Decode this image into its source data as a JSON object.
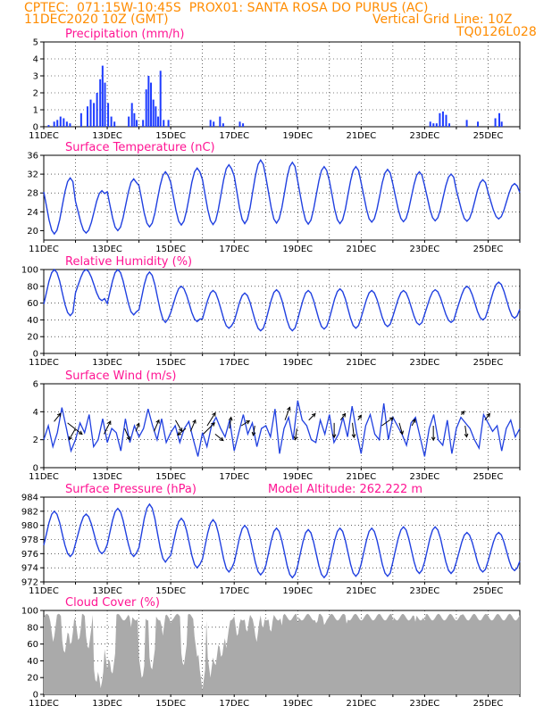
{
  "header": {
    "line1_left": "CPTEC:  071:15W-10:45S  PROX01: SANTA ROSA DO PURUS (AC)",
    "line2_left": "11DEC2020 10Z (GMT)",
    "line2_right": "Vertical Grid Line: 10Z",
    "line3_right": "TQ0126L028"
  },
  "colors": {
    "series": "#2040e0",
    "bars": "#1e3cff",
    "cloud": "#aaaaaa",
    "title": "#ff1493",
    "header": "#ff8c00"
  },
  "chart_data": [
    {
      "type": "bar",
      "title": "Precipitation (mm/h)",
      "xlabel": "",
      "ylabel": "",
      "x_tick_labels": [
        "11DEC",
        "13DEC",
        "15DEC",
        "17DEC",
        "19DEC",
        "21DEC",
        "23DEC",
        "25DEC"
      ],
      "y_tick_labels": [
        "0",
        "1",
        "2",
        "3",
        "4",
        "5"
      ],
      "ylim": [
        0,
        5
      ],
      "grid": true,
      "values": [
        0.1,
        0.2,
        0.3,
        0.3,
        0.4,
        0.5,
        0.3,
        0.2,
        0.0,
        0.0,
        0.5,
        1.0,
        1.8,
        2.0,
        2.8,
        3.6,
        2.5,
        1.2,
        0.5,
        0.2,
        0.0,
        0.0,
        0.0,
        0.0,
        0.0,
        0.0,
        0.0,
        0.0,
        0.0,
        0.0,
        0.0,
        0.0,
        0.0,
        0.0,
        0.0,
        0.0,
        0.0,
        0.0,
        0.0,
        0.0,
        0.0,
        0.0,
        0.0,
        0.0,
        0.8,
        1.5,
        0.7,
        0.0,
        0.0,
        0.0,
        0.0,
        0.0,
        0.0,
        0.0,
        0.0,
        0.0,
        0.0,
        0.0,
        0.0,
        0.0,
        0.0,
        0.0,
        0.0,
        0.0,
        0.0,
        0.0,
        0.0,
        0.0,
        0.0,
        0.0,
        0.0,
        0.0,
        0.0,
        0.0,
        0.0,
        0.0,
        0.0,
        0.0,
        0.0,
        0.0,
        0.0,
        0.0,
        0.0,
        0.0,
        0.0,
        0.0,
        0.0,
        0.0,
        0.0,
        0.0,
        0.0,
        0.0,
        0.0,
        0.0,
        0.0,
        0.0,
        0.0,
        0.0,
        0.0,
        0.0,
        0.0,
        0.0,
        0.0,
        0.0,
        0.0,
        0.0,
        0.0,
        0.0,
        0.0,
        0.0,
        0.0,
        0.0,
        0.0,
        0.0,
        0.0,
        0.0,
        0.0,
        0.0,
        0.0,
        0.0,
        0.0,
        0.0,
        0.0,
        0.0,
        0.0,
        0.0,
        0.0,
        0.0,
        0.0,
        0.0,
        0.0,
        0.0,
        0.0,
        0.0,
        0.0,
        0.0,
        0.0,
        0.0,
        0.0,
        0.0,
        0.0,
        0.0,
        0.0,
        0.0,
        0.0,
        0.0,
        0.0,
        0.0,
        0.0,
        0.0,
        0.0,
        0.0,
        0.0,
        0.0,
        0.0,
        0.0,
        0.0,
        0.0,
        0.0,
        0.0,
        0.0,
        0.0,
        0.0,
        0.0,
        0.0,
        0.0,
        0.0,
        0.0,
        0.0,
        0.0,
        0.0,
        0.0,
        0.0,
        0.0,
        0.0,
        0.0,
        0.0,
        0.0,
        0.0,
        0.0,
        0.0,
        0.0,
        0.0,
        0.0,
        0.0,
        0.0,
        0.0,
        0.0,
        0.0,
        0.0,
        0.0,
        0.0,
        0.0,
        0.0,
        0.0,
        0.0,
        0.0,
        0.0,
        0.0,
        0.0,
        0.0,
        0.0,
        0.0,
        0.0,
        0.0,
        0.0,
        0.0,
        0.0,
        0.0,
        0.0,
        0.0,
        0.0,
        0.0,
        0.0,
        0.0,
        0.0,
        0.0,
        0.0,
        0.0,
        0.0,
        0.0,
        0.0,
        0.0,
        0.0,
        0.0,
        0.0,
        0.0,
        0.0,
        0.0,
        0.0,
        0.0,
        0.0,
        0.0,
        0.0,
        0.0,
        0.0,
        0.0,
        0.0,
        0.0,
        0.0,
        0.0,
        0.0,
        0.0,
        0.0,
        0.0,
        0.0,
        0.0,
        0.0,
        0.0,
        0.0,
        0.0,
        0.0,
        0.0,
        0.0,
        0.0,
        0.0,
        0.0,
        0.0,
        0.0,
        0.0,
        0.0,
        0.0,
        0.0,
        0.0,
        0.0,
        0.0,
        0.0,
        0.0,
        0.0,
        0.0,
        0.0,
        0.0,
        0.0,
        0.0,
        0.0,
        0.0,
        0.0,
        0.0,
        0.0,
        0.0,
        0.0,
        0.0,
        0.0,
        0.0,
        0.0,
        0.0,
        0.0,
        0.0,
        0.0,
        0.0,
        0.0,
        0.0,
        0.0,
        0.0,
        0.0,
        0.0,
        0.0,
        0.0,
        0.0,
        0.0,
        0.0,
        0.0,
        0.0,
        0.0,
        0.0,
        0.0,
        0.0,
        0.0,
        0.0,
        0.0,
        0.0,
        0.0,
        0.0,
        0.0,
        0.0,
        0.0,
        0.0,
        0.0,
        0.0,
        0.0,
        0.0,
        0.0,
        0.0,
        0.0,
        0.0,
        0.0,
        0.0,
        0.0,
        0.0,
        0.0,
        0.0,
        0.0,
        0.0,
        0.0,
        0.0,
        0.0,
        0.0,
        0.0,
        0.0,
        0.0,
        0.0,
        0.0,
        0.0,
        0.0,
        0.0,
        0.0,
        0.0,
        0.0,
        0.0,
        0.0,
        0.0,
        0.0,
        0.0,
        0.0,
        0.0,
        0.0,
        0.0,
        0.0,
        0.0,
        0.0,
        0.0,
        0.0,
        0.0,
        0.0,
        0.0,
        0.0,
        0.0,
        0.0,
        0.0,
        0.0,
        0.0,
        0.0,
        0.0,
        0.0,
        0.0,
        0.0,
        0.0,
        0.0,
        0.0,
        0.0,
        0.0,
        0.0,
        0.0,
        0.0,
        0.0,
        0.0,
        0.0,
        0.0,
        0.0,
        0.0,
        0.0,
        0.0,
        0.0,
        0.0,
        0.0,
        0.0,
        0.0,
        0.0,
        0.0,
        0.0,
        0.0
      ],
      "events": [
        [
          0.5,
          0.1
        ],
        [
          1.2,
          0.3
        ],
        [
          1.6,
          0.4
        ],
        [
          2.0,
          0.6
        ],
        [
          2.4,
          0.5
        ],
        [
          2.8,
          0.3
        ],
        [
          3.2,
          0.2
        ],
        [
          4.6,
          0.8
        ],
        [
          5.4,
          1.2
        ],
        [
          5.8,
          1.6
        ],
        [
          6.2,
          1.4
        ],
        [
          6.6,
          2.0
        ],
        [
          7.0,
          2.8
        ],
        [
          7.3,
          3.6
        ],
        [
          7.6,
          2.6
        ],
        [
          8.0,
          1.4
        ],
        [
          8.4,
          0.6
        ],
        [
          8.8,
          0.3
        ],
        [
          10.6,
          0.6
        ],
        [
          11.0,
          1.4
        ],
        [
          11.3,
          0.8
        ],
        [
          11.6,
          0.4
        ],
        [
          12.4,
          0.4
        ],
        [
          12.8,
          2.2
        ],
        [
          13.1,
          3.0
        ],
        [
          13.4,
          2.6
        ],
        [
          13.7,
          1.6
        ],
        [
          14.0,
          1.2
        ],
        [
          14.3,
          0.6
        ],
        [
          14.6,
          3.3
        ],
        [
          15.0,
          0.4
        ],
        [
          15.6,
          0.4
        ],
        [
          20.9,
          0.4
        ],
        [
          21.3,
          0.3
        ],
        [
          22.1,
          0.6
        ],
        [
          22.5,
          0.2
        ],
        [
          24.6,
          0.3
        ],
        [
          25.0,
          0.2
        ],
        [
          48.6,
          0.3
        ],
        [
          49.0,
          0.2
        ],
        [
          49.4,
          0.2
        ],
        [
          49.8,
          0.8
        ],
        [
          50.2,
          0.9
        ],
        [
          50.6,
          0.7
        ],
        [
          51.0,
          0.2
        ],
        [
          53.2,
          0.4
        ],
        [
          54.6,
          0.3
        ],
        [
          56.8,
          0.5
        ],
        [
          57.3,
          0.8
        ],
        [
          57.6,
          0.3
        ]
      ]
    },
    {
      "type": "line",
      "title": "Surface Temperature (nC)",
      "x_tick_labels": [
        "11DEC",
        "13DEC",
        "15DEC",
        "17DEC",
        "19DEC",
        "21DEC",
        "23DEC",
        "25DEC"
      ],
      "y_tick_labels": [
        "20",
        "24",
        "28",
        "32",
        "36"
      ],
      "ylim": [
        18,
        36
      ],
      "grid": true,
      "daily_min": [
        19.3,
        19.5,
        20.0,
        20.8,
        21.2,
        21.3,
        21.5,
        21.6,
        21.4,
        21.5,
        21.8,
        21.9,
        22.1,
        22.0,
        22.5
      ],
      "daily_max": [
        31.2,
        28.5,
        31.0,
        32.5,
        33.3,
        34.0,
        35.0,
        34.5,
        33.6,
        33.6,
        33.0,
        32.5,
        32.0,
        30.8,
        30.0
      ]
    },
    {
      "type": "line",
      "title": "Relative Humidity (%)",
      "x_tick_labels": [
        "11DEC",
        "13DEC",
        "15DEC",
        "17DEC",
        "19DEC",
        "21DEC",
        "23DEC",
        "25DEC"
      ],
      "y_tick_labels": [
        "0",
        "20",
        "40",
        "60",
        "80",
        "100"
      ],
      "ylim": [
        0,
        100
      ],
      "grid": true,
      "daily_max": [
        100,
        100,
        100,
        97,
        80,
        75,
        72,
        76,
        75,
        77,
        75,
        75,
        76,
        80,
        85
      ],
      "daily_min": [
        45,
        63,
        46,
        37,
        38,
        30,
        27,
        27,
        29,
        30,
        32,
        34,
        37,
        40,
        42
      ]
    },
    {
      "type": "line",
      "title": "Surface Wind (m/s)",
      "x_tick_labels": [
        "11DEC",
        "13DEC",
        "15DEC",
        "17DEC",
        "19DEC",
        "21DEC",
        "23DEC",
        "25DEC"
      ],
      "y_tick_labels": [
        "0",
        "2",
        "4",
        "6"
      ],
      "ylim": [
        0,
        6
      ],
      "grid": true,
      "values": [
        2.0,
        3.0,
        1.5,
        2.5,
        4.3,
        2.8,
        1.2,
        2.0,
        3.2,
        2.5,
        3.8,
        1.5,
        2.0,
        3.5,
        1.8,
        2.8,
        2.5,
        1.2,
        3.5,
        1.8,
        3.0,
        2.2,
        2.8,
        4.2,
        3.0,
        2.0,
        3.5,
        1.8,
        2.5,
        3.0,
        1.8,
        2.8,
        3.3,
        2.0,
        0.8,
        2.5,
        1.5,
        3.0,
        3.6,
        2.8,
        2.2,
        3.4,
        1.2,
        2.5,
        3.8,
        2.4,
        3.2,
        1.5,
        2.8,
        3.0,
        2.2,
        4.2,
        1.0,
        2.8,
        3.6,
        2.0,
        4.8,
        3.4,
        3.0,
        2.0,
        1.8,
        3.4,
        2.4,
        3.8,
        1.8,
        2.4,
        3.6,
        2.2,
        4.4,
        2.5,
        1.0,
        3.0,
        3.8,
        2.4,
        2.0,
        4.6,
        2.0,
        3.6,
        3.0,
        2.4,
        1.6,
        3.2,
        3.6,
        2.2,
        0.8,
        2.8,
        3.8,
        2.0,
        1.6,
        3.4,
        1.0,
        2.8,
        3.6,
        3.2,
        2.8,
        2.0,
        1.4,
        3.8,
        3.2,
        2.6,
        3.0,
        1.2,
        2.8,
        3.4,
        2.2,
        2.8
      ],
      "arrows": [
        [
          1.3,
          3.3,
          0.8,
          1.0
        ],
        [
          3.0,
          3.2,
          1.8,
          -1.4
        ],
        [
          4.0,
          2.8,
          -0.8,
          -1.4
        ],
        [
          7.6,
          2.4,
          0.8,
          1.6
        ],
        [
          10.2,
          2.8,
          0.6,
          -1.4
        ],
        [
          11.6,
          2.6,
          0.4,
          1.0
        ],
        [
          13.9,
          2.6,
          0.6,
          1.4
        ],
        [
          16.6,
          3.4,
          0.8,
          -1.4
        ],
        [
          17.9,
          2.8,
          -1.0,
          -0.8
        ],
        [
          18.5,
          2.6,
          0.6,
          1.4
        ],
        [
          20.1,
          2.4,
          1.4,
          1.4
        ],
        [
          20.6,
          3.0,
          1.0,
          1.6
        ],
        [
          21.6,
          2.4,
          1.0,
          -0.8
        ],
        [
          23.4,
          2.8,
          0.2,
          1.4
        ],
        [
          24.9,
          3.0,
          1.0,
          0.6
        ],
        [
          26.6,
          3.0,
          -0.2,
          -1.2
        ],
        [
          30.4,
          3.4,
          0.6,
          1.6
        ],
        [
          31.9,
          2.8,
          -0.2,
          -1.4
        ],
        [
          33.4,
          3.4,
          0.8,
          0.8
        ],
        [
          36.6,
          3.2,
          0.0,
          -1.8
        ],
        [
          37.4,
          3.4,
          0.6,
          0.8
        ],
        [
          38.9,
          3.2,
          0.2,
          -1.8
        ],
        [
          39.6,
          3.4,
          0.4,
          0.6
        ],
        [
          42.6,
          3.0,
          1.4,
          1.0
        ],
        [
          44.8,
          3.2,
          0.4,
          -1.4
        ],
        [
          46.4,
          3.0,
          0.4,
          0.8
        ],
        [
          49.1,
          3.0,
          0.0,
          -1.8
        ],
        [
          52.6,
          3.8,
          0.4,
          0.4
        ],
        [
          53.1,
          3.0,
          0.2,
          -1.4
        ],
        [
          55.6,
          3.4,
          0.6,
          0.8
        ]
      ]
    },
    {
      "type": "line",
      "title": "Surface Pressure (hPa)",
      "annotation": "Model Altitude: 262.222  m",
      "x_tick_labels": [
        "11DEC",
        "13DEC",
        "15DEC",
        "17DEC",
        "19DEC",
        "21DEC",
        "23DEC",
        "25DEC"
      ],
      "y_tick_labels": [
        "972",
        "974",
        "976",
        "978",
        "980",
        "982",
        "984"
      ],
      "ylim": [
        972,
        984
      ],
      "grid": true,
      "daily_max": [
        982.0,
        981.6,
        982.4,
        983.0,
        981.0,
        980.8,
        980.0,
        979.6,
        979.4,
        979.6,
        979.6,
        979.8,
        979.8,
        979.0,
        979.0
      ],
      "daily_min": [
        975.6,
        976.0,
        975.6,
        974.8,
        974.0,
        973.4,
        973.0,
        972.6,
        972.6,
        972.8,
        972.8,
        973.2,
        973.2,
        973.4,
        973.6
      ]
    },
    {
      "type": "area",
      "title": "Cloud Cover (%)",
      "x_tick_labels": [
        "11DEC",
        "13DEC",
        "15DEC",
        "17DEC",
        "19DEC",
        "21DEC",
        "23DEC",
        "25DEC"
      ],
      "y_tick_labels": [
        "0",
        "20",
        "40",
        "60",
        "80",
        "100"
      ],
      "ylim": [
        0,
        100
      ],
      "grid": true,
      "dips": [
        [
          1.2,
          60
        ],
        [
          2.6,
          45
        ],
        [
          3.4,
          55
        ],
        [
          4.4,
          60
        ],
        [
          5.6,
          50
        ],
        [
          6.6,
          10
        ],
        [
          7.2,
          5
        ],
        [
          8.0,
          30
        ],
        [
          8.6,
          20
        ],
        [
          10.2,
          95
        ],
        [
          11.0,
          80
        ],
        [
          12.4,
          15
        ],
        [
          13.6,
          25
        ],
        [
          15.0,
          70
        ],
        [
          16.0,
          85
        ],
        [
          17.6,
          30
        ],
        [
          19.4,
          40
        ],
        [
          20.0,
          5
        ],
        [
          21.0,
          20
        ],
        [
          21.6,
          30
        ],
        [
          22.4,
          40
        ],
        [
          23.0,
          55
        ],
        [
          24.4,
          65
        ],
        [
          25.6,
          70
        ],
        [
          26.8,
          60
        ],
        [
          27.6,
          75
        ],
        [
          28.6,
          70
        ],
        [
          30.0,
          82
        ],
        [
          32.0,
          85
        ],
        [
          34.4,
          80
        ],
        [
          35.4,
          78
        ],
        [
          38.2,
          82
        ],
        [
          40.0,
          88
        ],
        [
          44.0,
          88
        ],
        [
          46.8,
          84
        ],
        [
          48.0,
          88
        ],
        [
          50.4,
          86
        ],
        [
          52.6,
          90
        ],
        [
          54.8,
          88
        ],
        [
          56.6,
          90
        ],
        [
          58.0,
          92
        ]
      ]
    }
  ]
}
